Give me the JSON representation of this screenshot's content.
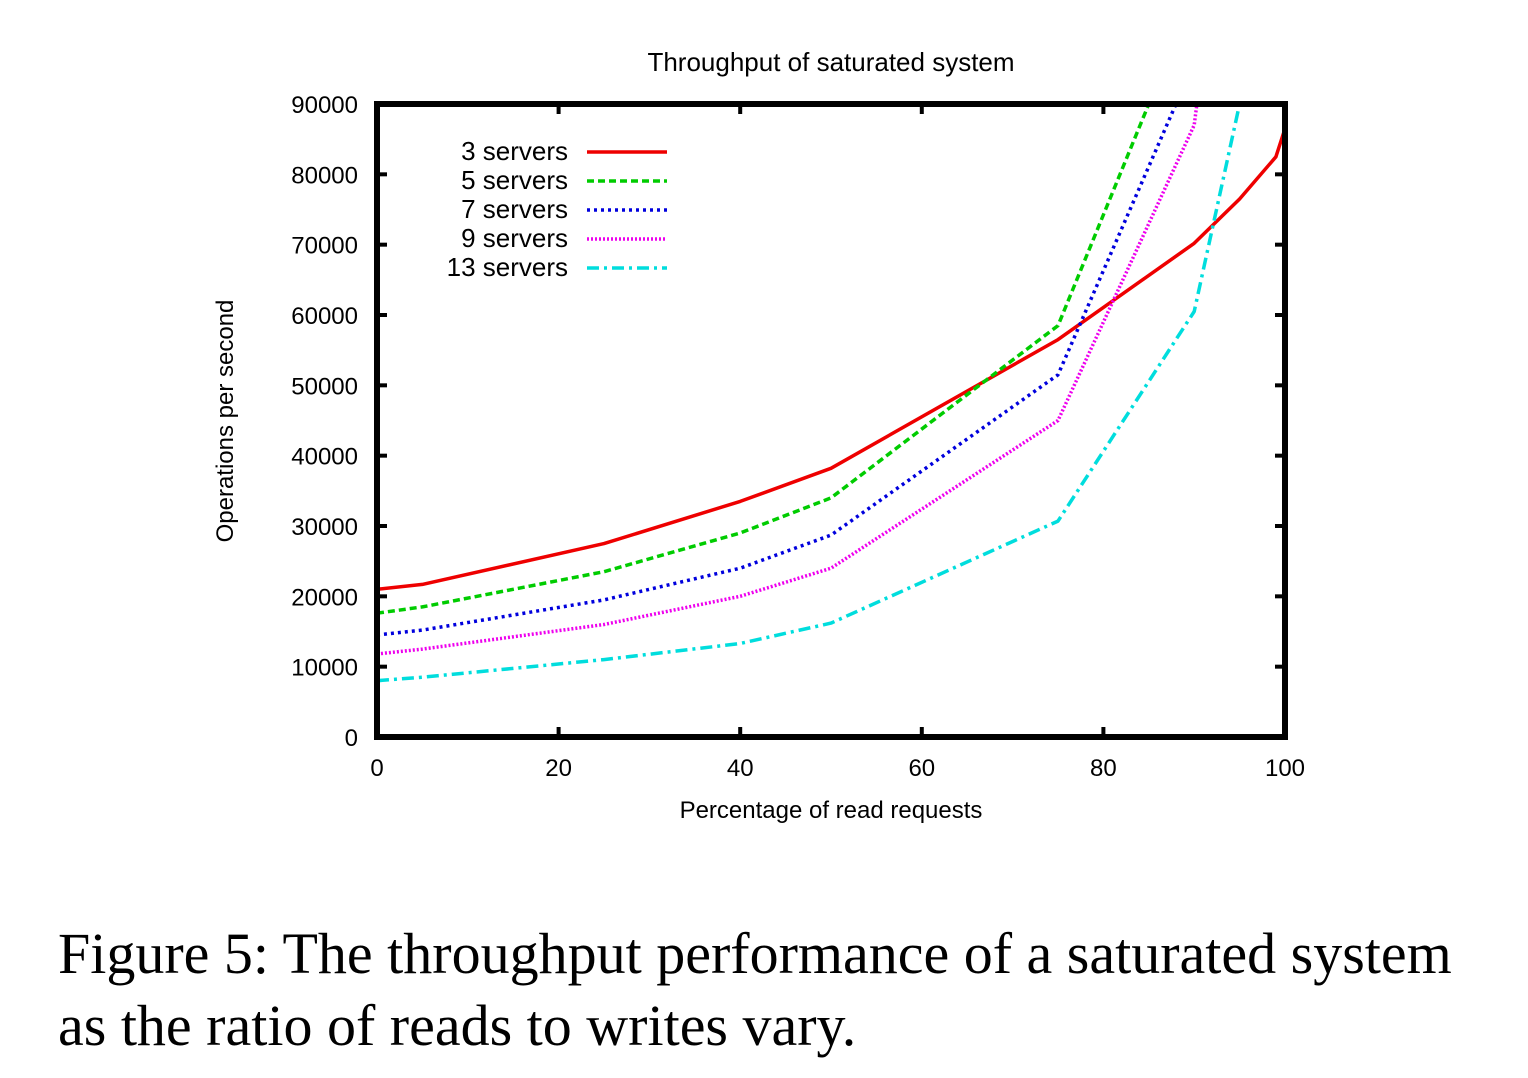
{
  "chart_data": {
    "type": "line",
    "title": "Throughput of saturated system",
    "xlabel": "Percentage of read requests",
    "ylabel": "Operations per second",
    "xlim": [
      0,
      100
    ],
    "ylim": [
      0,
      90000
    ],
    "xticks": [
      "0",
      "20",
      "40",
      "60",
      "80",
      "100"
    ],
    "yticks": [
      "0",
      "10000",
      "20000",
      "30000",
      "40000",
      "50000",
      "60000",
      "70000",
      "80000",
      "90000"
    ],
    "legend_position": "top-left",
    "grid": false,
    "series": [
      {
        "name": "3 servers",
        "color": "#ee0000",
        "dash": "solid",
        "x": [
          0,
          5,
          25,
          40,
          50,
          75,
          90,
          95,
          99,
          100
        ],
        "y": [
          21000,
          21700,
          27500,
          33500,
          38200,
          56500,
          70200,
          76500,
          82500,
          86500
        ]
      },
      {
        "name": "5 servers",
        "color": "#00cc00",
        "dash": "dashed",
        "x": [
          0,
          5,
          25,
          40,
          50,
          75,
          85
        ],
        "y": [
          17600,
          18500,
          23500,
          29000,
          34000,
          58500,
          90000
        ]
      },
      {
        "name": "7 servers",
        "color": "#0000dd",
        "dash": "dotted",
        "x": [
          0,
          5,
          25,
          40,
          50,
          75,
          88
        ],
        "y": [
          14500,
          15200,
          19500,
          24000,
          28700,
          51500,
          90000
        ]
      },
      {
        "name": "9 servers",
        "color": "#ee00ee",
        "dash": "fine-dotted",
        "x": [
          0,
          5,
          25,
          40,
          50,
          75,
          90,
          90.3
        ],
        "y": [
          11800,
          12500,
          16000,
          20000,
          24000,
          45000,
          87000,
          90000
        ]
      },
      {
        "name": "13 servers",
        "color": "#00dddd",
        "dash": "dash-dot",
        "x": [
          0,
          5,
          25,
          40,
          50,
          75,
          90,
          95
        ],
        "y": [
          8000,
          8500,
          11000,
          13300,
          16200,
          30700,
          60500,
          90000
        ]
      }
    ]
  },
  "caption": "Figure 5: The throughput performance of a saturated system as the ratio of reads to writes vary."
}
